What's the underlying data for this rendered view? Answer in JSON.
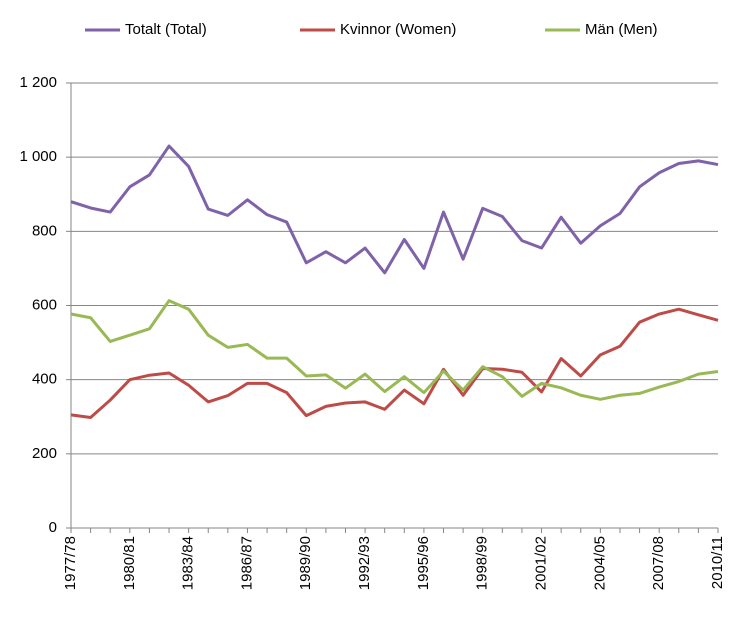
{
  "chart_data": {
    "type": "line",
    "categories": [
      "1977/78",
      null,
      null,
      "1980/81",
      null,
      null,
      "1983/84",
      null,
      null,
      "1986/87",
      null,
      null,
      "1989/90",
      null,
      null,
      "1992/93",
      null,
      null,
      "1995/96",
      null,
      null,
      "1998/99",
      null,
      null,
      "2001/02",
      null,
      null,
      "2004/05",
      null,
      null,
      "2007/08",
      null,
      null,
      "2010/11"
    ],
    "series": [
      {
        "name": "Totalt (Total)",
        "color": "#7f62a8",
        "values": [
          880,
          863,
          852,
          920,
          952,
          1030,
          975,
          860,
          843,
          885,
          845,
          825,
          715,
          745,
          715,
          755,
          688,
          778,
          700,
          852,
          725,
          862,
          840,
          775,
          755,
          838,
          768,
          815,
          848,
          920,
          958,
          983,
          990,
          980
        ]
      },
      {
        "name": "Kvinnor (Women)",
        "color": "#be4b48",
        "values": [
          305,
          298,
          345,
          400,
          412,
          418,
          385,
          340,
          357,
          390,
          390,
          365,
          303,
          328,
          337,
          340,
          320,
          372,
          335,
          428,
          358,
          430,
          428,
          420,
          367,
          457,
          410,
          467,
          490,
          555,
          577,
          590,
          575,
          560
        ]
      },
      {
        "name": "Män (Men)",
        "color": "#98b954",
        "values": [
          577,
          567,
          503,
          520,
          537,
          613,
          590,
          520,
          487,
          495,
          458,
          458,
          410,
          413,
          377,
          415,
          368,
          408,
          365,
          423,
          372,
          435,
          408,
          355,
          390,
          378,
          358,
          347,
          358,
          363,
          380,
          395,
          415,
          422
        ]
      }
    ],
    "ylim": [
      0,
      1200
    ],
    "yticks": [
      0,
      200,
      400,
      600,
      800,
      {
        "value": 1000,
        "label": "1 000"
      },
      {
        "value": 1200,
        "label": "1 200"
      }
    ],
    "grid": true
  }
}
